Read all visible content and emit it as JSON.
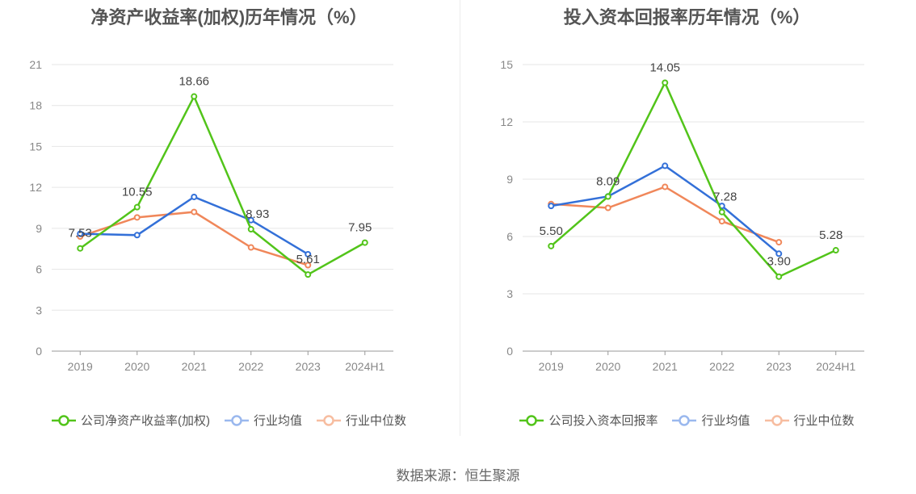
{
  "source": "数据来源：恒生聚源",
  "chart_data": [
    {
      "type": "line",
      "title": "净资产收益率(加权)历年情况（%）",
      "categories": [
        "2019",
        "2020",
        "2021",
        "2022",
        "2023",
        "2024H1"
      ],
      "ylim": [
        0,
        21
      ],
      "yticks": [
        "0",
        "3",
        "6",
        "9",
        "12",
        "15",
        "18",
        "21"
      ],
      "grid": true,
      "legend_position": "bottom",
      "series": [
        {
          "name": "公司净资产收益率(加权)",
          "color": "#52c41a",
          "values": [
            7.53,
            10.55,
            18.66,
            8.93,
            5.61,
            7.95
          ],
          "labels": [
            "7.53",
            "10.55",
            "18.66",
            "8.93",
            "5.61",
            "7.95"
          ]
        },
        {
          "name": "行业均值",
          "color": "#3370d8",
          "values": [
            8.6,
            8.5,
            11.3,
            9.6,
            7.1,
            null
          ]
        },
        {
          "name": "行业中位数",
          "color": "#f0875a",
          "values": [
            8.4,
            9.8,
            10.2,
            7.6,
            6.3,
            null
          ]
        }
      ]
    },
    {
      "type": "line",
      "title": "投入资本回报率历年情况（%）",
      "categories": [
        "2019",
        "2020",
        "2021",
        "2022",
        "2023",
        "2024H1"
      ],
      "ylim": [
        0,
        15
      ],
      "yticks": [
        "0",
        "3",
        "6",
        "9",
        "12",
        "15"
      ],
      "grid": true,
      "legend_position": "bottom",
      "series": [
        {
          "name": "公司投入资本回报率",
          "color": "#52c41a",
          "values": [
            5.5,
            8.09,
            14.05,
            7.28,
            3.9,
            5.28
          ],
          "labels": [
            "5.50",
            "8.09",
            "14.05",
            "7.28",
            "3.90",
            "5.28"
          ]
        },
        {
          "name": "行业均值",
          "color": "#3370d8",
          "values": [
            7.6,
            8.1,
            9.7,
            7.6,
            5.1,
            null
          ]
        },
        {
          "name": "行业中位数",
          "color": "#f0875a",
          "values": [
            7.7,
            7.5,
            8.6,
            6.8,
            5.7,
            null
          ]
        }
      ]
    }
  ]
}
